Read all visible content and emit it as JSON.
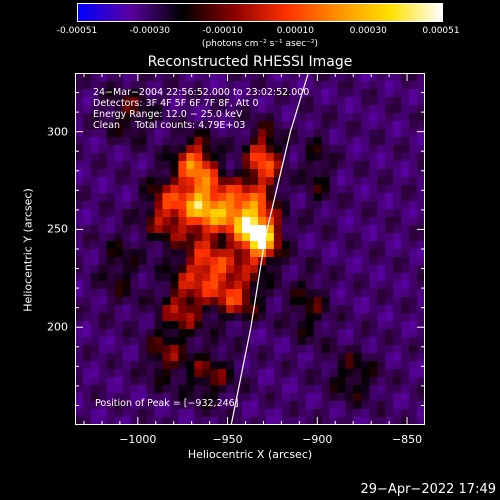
{
  "colorbar": {
    "ticks": [
      "-0.00051",
      "-0.00030",
      "-0.00010",
      "0.00010",
      "0.00030",
      "0.00051"
    ],
    "units": "(photons cm⁻² s⁻¹ asec⁻²)",
    "colors": [
      "#0000ff",
      "#5a00a0",
      "#000000",
      "#8a0000",
      "#ff3000",
      "#ff9000",
      "#ffe000",
      "#ffffff"
    ]
  },
  "chart_data": {
    "type": "heatmap",
    "title": "Reconstructed RHESSI Image",
    "xlabel": "Heliocentric X (arcsec)",
    "ylabel": "Heliocentric Y (arcsec)",
    "xlim": [
      -1035,
      -840
    ],
    "ylim": [
      150,
      330
    ],
    "xticks": [
      "−1000",
      "−950",
      "−900",
      "−850"
    ],
    "xtick_values": [
      -1000,
      -950,
      -900,
      -850
    ],
    "yticks": [
      "200",
      "250",
      "300"
    ],
    "ytick_values": [
      200,
      250,
      300
    ],
    "info_lines": [
      "24−Mar−2004 22:56:52.000 to 23:02:52.000",
      "Detectors: 3F 4F 5F 6F 7F 8F, Att 0",
      "Energy Range: 12.0 − 25.0 keV",
      "Clean     Total counts: 4.79E+03"
    ],
    "peak_label": "Position of Peak = [−932,246]",
    "peak": [
      -932,
      246
    ],
    "limb_line": [
      [
        -948,
        150
      ],
      [
        -937,
        200
      ],
      [
        -929,
        246
      ],
      [
        -915,
        300
      ],
      [
        -905,
        330
      ]
    ],
    "sources": [
      {
        "x": -932,
        "y": 246,
        "amp": 1.0,
        "sx": 8,
        "sy": 10
      },
      {
        "x": -945,
        "y": 260,
        "amp": 0.7,
        "sx": 10,
        "sy": 10
      },
      {
        "x": -965,
        "y": 262,
        "amp": 0.75,
        "sx": 9,
        "sy": 12
      },
      {
        "x": -968,
        "y": 285,
        "amp": 0.6,
        "sx": 8,
        "sy": 9
      },
      {
        "x": -930,
        "y": 285,
        "amp": 0.65,
        "sx": 7,
        "sy": 12
      },
      {
        "x": -960,
        "y": 230,
        "amp": 0.6,
        "sx": 12,
        "sy": 9
      },
      {
        "x": -985,
        "y": 260,
        "amp": 0.5,
        "sx": 8,
        "sy": 12
      },
      {
        "x": -975,
        "y": 210,
        "amp": 0.45,
        "sx": 9,
        "sy": 10
      },
      {
        "x": -945,
        "y": 215,
        "amp": 0.5,
        "sx": 10,
        "sy": 8
      },
      {
        "x": -985,
        "y": 185,
        "amp": 0.35,
        "sx": 8,
        "sy": 10
      },
      {
        "x": -960,
        "y": 175,
        "amp": 0.35,
        "sx": 10,
        "sy": 10
      },
      {
        "x": -905,
        "y": 210,
        "amp": 0.3,
        "sx": 8,
        "sy": 12
      },
      {
        "x": -880,
        "y": 175,
        "amp": 0.3,
        "sx": 10,
        "sy": 10
      },
      {
        "x": -900,
        "y": 280,
        "amp": 0.25,
        "sx": 6,
        "sy": 15
      },
      {
        "x": -1005,
        "y": 310,
        "amp": 0.3,
        "sx": 10,
        "sy": 10
      },
      {
        "x": -1010,
        "y": 230,
        "amp": 0.25,
        "sx": 8,
        "sy": 14
      }
    ]
  },
  "timestamp": "29−Apr−2022 17:49"
}
